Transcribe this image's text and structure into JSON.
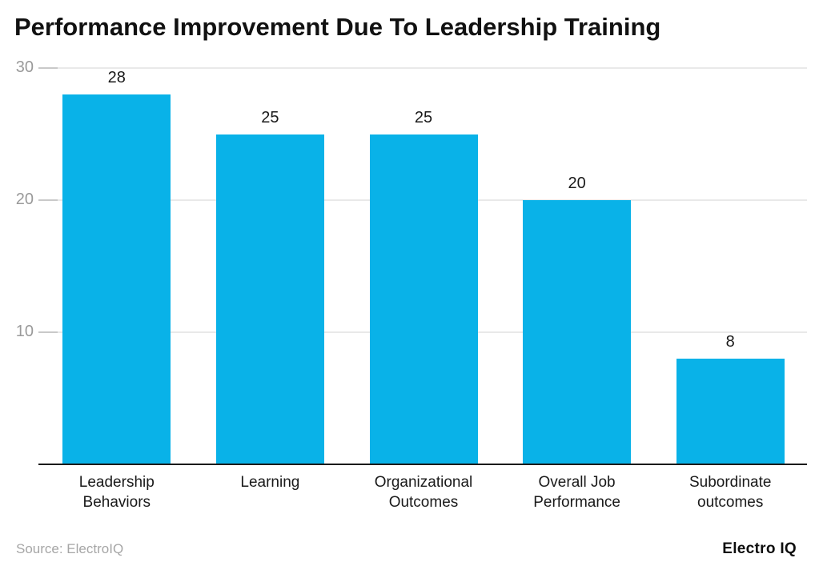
{
  "header": {
    "title": "Performance Improvement Due To Leadership Training"
  },
  "chart_data": {
    "type": "bar",
    "title": "Performance Improvement Due To Leadership Training",
    "categories": [
      "Leadership Behaviors",
      "Learning",
      "Organizational Outcomes",
      "Overall Job Performance",
      "Subordinate outcomes"
    ],
    "values": [
      28,
      25,
      25,
      20,
      8
    ],
    "xlabel": "",
    "ylabel": "",
    "ylim": [
      0,
      30
    ],
    "yticks": [
      10,
      20,
      30
    ],
    "grid": true,
    "legend_position": "none",
    "colors": {
      "bar": "#09b2e8",
      "gridline": "#e9e9e9",
      "tick_dash": "#c9c9c9",
      "axis_line": "#1a1a1a",
      "y_tick_text": "#9a9a9a",
      "label_text": "#1a1a1a",
      "title_text": "#111111"
    }
  },
  "footer": {
    "source": "Source: ElectroIQ",
    "brand": "Electro IQ"
  }
}
